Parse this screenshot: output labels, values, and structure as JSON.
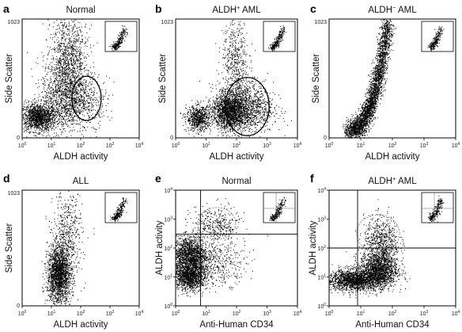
{
  "figure": {
    "tick_decades": [
      "0",
      "1",
      "2",
      "3",
      "4"
    ],
    "side_scatter_max_tick": "1023"
  },
  "chart_data": [
    {
      "type": "scatter",
      "panel_label": "a",
      "title": {
        "pre": "Normal",
        "sup": "",
        "post": ""
      },
      "xlabel": "ALDH activity",
      "ylabel": "Side Scatter",
      "x_scale": "log",
      "xlim": [
        1,
        10000
      ],
      "y_scale": "linear",
      "ylim": [
        0,
        1023
      ],
      "populations": [
        {
          "name": "lymphoid cluster",
          "x_log10": 0.55,
          "y": 180,
          "spread_x": 0.3,
          "spread_y": 60,
          "n": 1400
        },
        {
          "name": "myeloid cluster",
          "x_log10": 1.45,
          "y": 380,
          "spread_x": 0.38,
          "spread_y": 170,
          "n": 1300
        },
        {
          "name": "granulocyte streak",
          "x_log10": 1.6,
          "y": 700,
          "spread_x": 0.32,
          "spread_y": 200,
          "n": 900
        },
        {
          "name": "ALDH bright",
          "x_log10": 2.25,
          "y": 330,
          "spread_x": 0.35,
          "spread_y": 110,
          "n": 300
        }
      ],
      "gate": {
        "shape": "circle",
        "x_log10": 2.2,
        "y": 340,
        "r_x_log10": 0.5,
        "r_y": 190
      },
      "inset": true
    },
    {
      "type": "scatter",
      "panel_label": "b",
      "title": {
        "pre": "ALDH",
        "sup": "+",
        "post": " AML"
      },
      "xlabel": "ALDH activity",
      "ylabel": "Side Scatter",
      "x_scale": "log",
      "xlim": [
        1,
        10000
      ],
      "y_scale": "linear",
      "ylim": [
        0,
        1023
      ],
      "populations": [
        {
          "name": "low cluster",
          "x_log10": 0.75,
          "y": 170,
          "spread_x": 0.2,
          "spread_y": 55,
          "n": 700
        },
        {
          "name": "blast cluster",
          "x_log10": 1.75,
          "y": 230,
          "spread_x": 0.28,
          "spread_y": 75,
          "n": 1600
        },
        {
          "name": "ALDH-bright cloud",
          "x_log10": 2.3,
          "y": 260,
          "spread_x": 0.45,
          "spread_y": 110,
          "n": 1200
        },
        {
          "name": "vertical streak",
          "x_log10": 1.95,
          "y": 620,
          "spread_x": 0.22,
          "spread_y": 220,
          "n": 600
        }
      ],
      "gate": {
        "shape": "circle",
        "x_log10": 2.35,
        "y": 270,
        "r_x_log10": 0.72,
        "r_y": 250
      },
      "inset": true
    },
    {
      "type": "scatter",
      "panel_label": "c",
      "title": {
        "pre": "ALDH",
        "sup": "−",
        "post": " AML"
      },
      "xlabel": "ALDH activity",
      "ylabel": "Side Scatter",
      "x_scale": "log",
      "xlim": [
        1,
        10000
      ],
      "y_scale": "linear",
      "ylim": [
        0,
        1023
      ],
      "populations": [
        {
          "name": "curved band",
          "band": true,
          "x0_log10": 0.55,
          "x1_log10": 1.85,
          "y0": 60,
          "y1": 990,
          "n": 3200
        }
      ],
      "inset": true
    },
    {
      "type": "scatter",
      "panel_label": "d",
      "title": {
        "pre": "ALL",
        "sup": "",
        "post": ""
      },
      "xlabel": "ALDH activity",
      "ylabel": "Side Scatter",
      "x_scale": "log",
      "xlim": [
        1,
        10000
      ],
      "y_scale": "linear",
      "ylim": [
        0,
        1023
      ],
      "populations": [
        {
          "name": "main cluster",
          "x_log10": 1.25,
          "y": 280,
          "spread_x": 0.2,
          "spread_y": 130,
          "n": 2000
        },
        {
          "name": "upper streak",
          "x_log10": 1.55,
          "y": 620,
          "spread_x": 0.25,
          "spread_y": 200,
          "n": 500
        }
      ],
      "inset": true
    },
    {
      "type": "scatter",
      "panel_label": "e",
      "title": {
        "pre": "Normal",
        "sup": "",
        "post": ""
      },
      "xlabel": "Anti-Human CD34",
      "ylabel": "ALDH activity",
      "x_scale": "log",
      "xlim": [
        1,
        10000
      ],
      "y_scale": "log",
      "ylim": [
        1,
        10000
      ],
      "populations": [
        {
          "name": "lower cluster",
          "x_log10": 0.45,
          "y_log10": 1.05,
          "spread_x": 0.28,
          "spread_y": 0.25,
          "n": 1500
        },
        {
          "name": "middle cluster",
          "x_log10": 0.45,
          "y_log10": 1.8,
          "spread_x": 0.3,
          "spread_y": 0.3,
          "n": 1500
        },
        {
          "name": "ALDH-bright CD34+",
          "x_log10": 1.3,
          "y_log10": 2.75,
          "spread_x": 0.4,
          "spread_y": 0.35,
          "n": 400
        },
        {
          "name": "CD34+ tail",
          "x_log10": 1.55,
          "y_log10": 1.45,
          "spread_x": 0.4,
          "spread_y": 0.35,
          "n": 300
        }
      ],
      "gate": {
        "shape": "circle",
        "x_log10": 1.35,
        "y_log10": 2.85,
        "r_x_log10": 0.62,
        "r_y_log10": 0.55
      },
      "quadrant": {
        "x_log10": 0.82,
        "y_log10": 2.48
      },
      "inset": true
    },
    {
      "type": "scatter",
      "panel_label": "f",
      "title": {
        "pre": "ALDH",
        "sup": "+",
        "post": " AML"
      },
      "xlabel": "Anti-Human CD34",
      "ylabel": "ALDH activity",
      "x_scale": "log",
      "xlim": [
        1,
        10000
      ],
      "y_scale": "log",
      "ylim": [
        1,
        10000
      ],
      "populations": [
        {
          "name": "low band",
          "x_log10": 0.8,
          "y_log10": 0.9,
          "spread_x": 0.45,
          "spread_y": 0.18,
          "n": 1800
        },
        {
          "name": "CD34+ cluster",
          "x_log10": 1.55,
          "y_log10": 1.25,
          "spread_x": 0.3,
          "spread_y": 0.3,
          "n": 1600
        },
        {
          "name": "rising arm",
          "x_log10": 1.65,
          "y_log10": 2.2,
          "spread_x": 0.28,
          "spread_y": 0.45,
          "n": 700
        }
      ],
      "gate": {
        "shape": "circle",
        "x_log10": 1.55,
        "y_log10": 2.5,
        "r_x_log10": 0.68,
        "r_y_log10": 0.65
      },
      "quadrant": {
        "x_log10": 0.9,
        "y_log10": 2.0
      },
      "inset": true
    }
  ]
}
